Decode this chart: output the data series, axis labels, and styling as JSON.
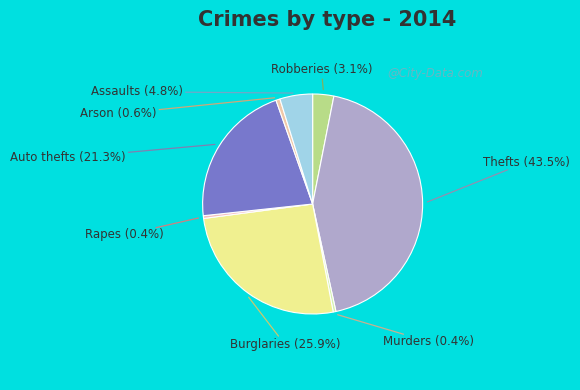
{
  "title": "Crimes by type - 2014",
  "title_fontsize": 15,
  "title_color": "#333333",
  "title_fontweight": "bold",
  "ordered_labels": [
    "Robberies",
    "Thefts",
    "Murders",
    "Burglaries",
    "Rapes",
    "Auto thefts",
    "Arson",
    "Assaults"
  ],
  "ordered_values": [
    3.1,
    43.5,
    0.4,
    25.9,
    0.4,
    21.3,
    0.6,
    4.8
  ],
  "ordered_colors": [
    "#b8dc88",
    "#b0a8cc",
    "#d4f0b0",
    "#f0f090",
    "#f4c0c0",
    "#7878cc",
    "#f0c8a8",
    "#a0d4e8"
  ],
  "ordered_texts": [
    "Robberies (3.1%)",
    "Thefts (43.5%)",
    "Murders (0.4%)",
    "Burglaries (25.9%)",
    "Rapes (0.4%)",
    "Auto thefts (21.3%)",
    "Arson (0.6%)",
    "Assaults (4.8%)"
  ],
  "background_color_outer": "#00e0e0",
  "background_color_inner": "#c8e8d0",
  "startangle": 90,
  "watermark": "@City-Data.com",
  "label_fontsize": 8.5,
  "label_color": "#333333",
  "line_colors": {
    "Robberies (3.1%)": "#80b060",
    "Thefts (43.5%)": "#9090b0",
    "Murders (0.4%)": "#c8b090",
    "Burglaries (25.9%)": "#c8c870",
    "Rapes (0.4%)": "#d08080",
    "Auto thefts (21.3%)": "#8080b0",
    "Arson (0.6%)": "#d0a878",
    "Assaults (4.8%)": "#70a8c8"
  }
}
